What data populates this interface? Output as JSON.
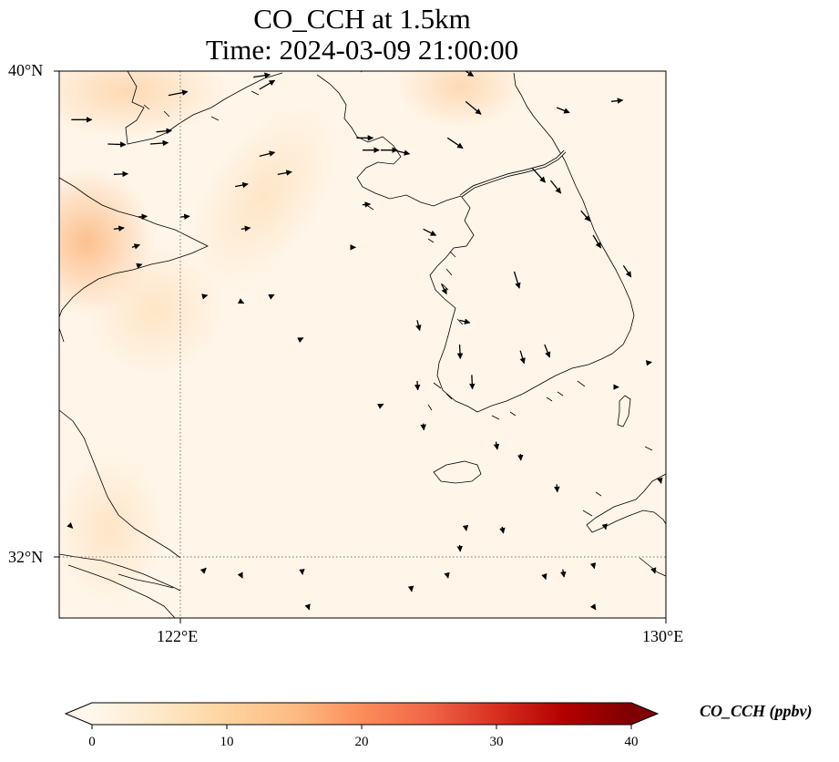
{
  "title": {
    "line1": "CO_CCH at 1.5km",
    "line2": "Time: 2024-03-09 21:00:00"
  },
  "axes": {
    "lon_range": [
      120,
      130
    ],
    "lat_range": [
      31,
      40
    ],
    "lat_ticks": [
      {
        "value": 40,
        "label": "40°N"
      },
      {
        "value": 32,
        "label": "32°N"
      }
    ],
    "lon_ticks": [
      {
        "value": 122,
        "label": "122°E"
      },
      {
        "value": 130,
        "label": "130°E"
      }
    ],
    "gridlines": "dotted"
  },
  "colorbar": {
    "label": "CO_CCH (ppbv)",
    "min": 0,
    "max": 40,
    "extend": "both",
    "colormap": "OrRd",
    "colors": [
      "#fff7ec",
      "#fee8c8",
      "#fdd49e",
      "#fdbb84",
      "#fc8d59",
      "#ef6548",
      "#d7301f",
      "#b30000",
      "#7f0000"
    ],
    "ticks": [
      {
        "value": 0,
        "label": "0"
      },
      {
        "value": 10,
        "label": "10"
      },
      {
        "value": 20,
        "label": "20"
      },
      {
        "value": 30,
        "label": "30"
      },
      {
        "value": 40,
        "label": "40"
      }
    ]
  },
  "field_colors": {
    "background": "#fff5e8",
    "light": "#fee8cc",
    "medium": "#fdd6ad",
    "high": "#fcc191"
  },
  "wind_vectors": [
    {
      "lon": 120.2,
      "lat": 39.2,
      "u": 1.6,
      "v": 0.0
    },
    {
      "lon": 120.8,
      "lat": 38.8,
      "u": 1.4,
      "v": -0.05
    },
    {
      "lon": 121.5,
      "lat": 38.8,
      "u": 1.4,
      "v": 0.1
    },
    {
      "lon": 121.8,
      "lat": 39.6,
      "u": 1.5,
      "v": 0.3
    },
    {
      "lon": 121.6,
      "lat": 39.0,
      "u": 1.2,
      "v": 0.1
    },
    {
      "lon": 120.9,
      "lat": 38.3,
      "u": 1.1,
      "v": 0.05
    },
    {
      "lon": 121.3,
      "lat": 37.6,
      "u": 0.7,
      "v": 0.05
    },
    {
      "lon": 120.9,
      "lat": 37.4,
      "u": 0.8,
      "v": 0.1
    },
    {
      "lon": 121.2,
      "lat": 37.1,
      "u": 0.6,
      "v": 0.2
    },
    {
      "lon": 122.0,
      "lat": 37.6,
      "u": 0.7,
      "v": 0.05
    },
    {
      "lon": 123.3,
      "lat": 38.6,
      "u": 1.2,
      "v": 0.3
    },
    {
      "lon": 123.6,
      "lat": 38.3,
      "u": 1.1,
      "v": 0.2
    },
    {
      "lon": 122.9,
      "lat": 38.1,
      "u": 1.0,
      "v": 0.2
    },
    {
      "lon": 123.0,
      "lat": 37.4,
      "u": 0.7,
      "v": 0.1
    },
    {
      "lon": 123.3,
      "lat": 39.7,
      "u": 1.2,
      "v": 0.7
    },
    {
      "lon": 123.2,
      "lat": 39.9,
      "u": 1.3,
      "v": 0.2
    },
    {
      "lon": 126.7,
      "lat": 39.5,
      "u": 1.2,
      "v": -1.0
    },
    {
      "lon": 126.4,
      "lat": 38.9,
      "u": 1.2,
      "v": -0.8
    },
    {
      "lon": 127.8,
      "lat": 38.4,
      "u": 1.0,
      "v": -1.1
    },
    {
      "lon": 128.1,
      "lat": 38.2,
      "u": 0.8,
      "v": -1.0
    },
    {
      "lon": 128.2,
      "lat": 39.4,
      "u": 1.0,
      "v": -0.4
    },
    {
      "lon": 129.1,
      "lat": 39.5,
      "u": 0.9,
      "v": 0.1
    },
    {
      "lon": 126.7,
      "lat": 40.0,
      "u": 0.6,
      "v": -0.4
    },
    {
      "lon": 125.3,
      "lat": 38.7,
      "u": 1.3,
      "v": 0.0
    },
    {
      "lon": 125.0,
      "lat": 38.7,
      "u": 1.3,
      "v": 0.0
    },
    {
      "lon": 125.5,
      "lat": 38.7,
      "u": 1.3,
      "v": -0.3
    },
    {
      "lon": 124.9,
      "lat": 38.9,
      "u": 1.3,
      "v": 0.0
    },
    {
      "lon": 124.8,
      "lat": 40.0,
      "u": 1.2,
      "v": 0.2
    },
    {
      "lon": 125.0,
      "lat": 37.8,
      "u": 0.6,
      "v": 0.05
    },
    {
      "lon": 126.0,
      "lat": 37.4,
      "u": 1.0,
      "v": -0.5
    },
    {
      "lon": 124.8,
      "lat": 37.1,
      "u": 0.4,
      "v": 0.0
    },
    {
      "lon": 128.6,
      "lat": 37.7,
      "u": 0.7,
      "v": -0.8
    },
    {
      "lon": 128.8,
      "lat": 37.3,
      "u": 0.6,
      "v": -1.0
    },
    {
      "lon": 129.3,
      "lat": 36.8,
      "u": 0.6,
      "v": -0.9
    },
    {
      "lon": 127.5,
      "lat": 36.7,
      "u": 0.4,
      "v": -1.3
    },
    {
      "lon": 126.3,
      "lat": 36.5,
      "u": 0.4,
      "v": -0.8
    },
    {
      "lon": 125.9,
      "lat": 35.9,
      "u": 0.2,
      "v": -0.8
    },
    {
      "lon": 126.6,
      "lat": 35.9,
      "u": 0.8,
      "v": -0.2
    },
    {
      "lon": 127.6,
      "lat": 35.4,
      "u": 0.3,
      "v": -1.0
    },
    {
      "lon": 128.0,
      "lat": 35.5,
      "u": 0.4,
      "v": -1.0
    },
    {
      "lon": 126.6,
      "lat": 35.5,
      "u": 0.05,
      "v": -1.1
    },
    {
      "lon": 126.8,
      "lat": 35.0,
      "u": 0.05,
      "v": -1.1
    },
    {
      "lon": 125.9,
      "lat": 34.9,
      "u": 0.05,
      "v": -0.7
    },
    {
      "lon": 126.0,
      "lat": 34.2,
      "u": 0.05,
      "v": -0.5
    },
    {
      "lon": 127.2,
      "lat": 33.9,
      "u": 0.1,
      "v": -0.6
    },
    {
      "lon": 127.6,
      "lat": 33.7,
      "u": 0.05,
      "v": -0.5
    },
    {
      "lon": 128.2,
      "lat": 33.2,
      "u": 0.05,
      "v": -0.6
    },
    {
      "lon": 127.3,
      "lat": 32.5,
      "u": 0.1,
      "v": -0.5
    },
    {
      "lon": 126.6,
      "lat": 32.2,
      "u": 0.05,
      "v": -0.5
    },
    {
      "lon": 128.3,
      "lat": 31.8,
      "u": 0.1,
      "v": -0.6
    },
    {
      "lon": 128.8,
      "lat": 31.9,
      "u": 0.1,
      "v": -0.4
    },
    {
      "lon": 129.8,
      "lat": 31.8,
      "u": 0.1,
      "v": -0.3
    },
    {
      "lon": 129.9,
      "lat": 33.3,
      "u": 0.1,
      "v": -0.4
    },
    {
      "lon": 129.0,
      "lat": 32.5,
      "u": 0.05,
      "v": -0.2
    },
    {
      "lon": 129.7,
      "lat": 35.2,
      "u": 0.3,
      "v": 0.05
    },
    {
      "lon": 129.2,
      "lat": 34.8,
      "u": 0.1,
      "v": 0.0
    },
    {
      "lon": 128.8,
      "lat": 31.2,
      "u": 0.2,
      "v": -0.3
    },
    {
      "lon": 128.0,
      "lat": 31.7,
      "u": 0.1,
      "v": -0.3
    },
    {
      "lon": 125.8,
      "lat": 31.5,
      "u": 0.05,
      "v": -0.3
    },
    {
      "lon": 124.1,
      "lat": 31.2,
      "u": 0.1,
      "v": -0.3
    },
    {
      "lon": 123.0,
      "lat": 31.7,
      "u": 0.1,
      "v": -0.2
    },
    {
      "lon": 122.4,
      "lat": 31.8,
      "u": 0.1,
      "v": 0.1
    },
    {
      "lon": 124.0,
      "lat": 31.8,
      "u": 0.05,
      "v": -0.4
    },
    {
      "lon": 126.4,
      "lat": 31.7,
      "u": 0.05,
      "v": -0.2
    },
    {
      "lon": 126.7,
      "lat": 32.5,
      "u": 0.05,
      "v": -0.3
    },
    {
      "lon": 125.3,
      "lat": 34.5,
      "u": 0.2,
      "v": 0.1
    },
    {
      "lon": 124.0,
      "lat": 35.6,
      "u": 0.1,
      "v": 0.05
    },
    {
      "lon": 123.0,
      "lat": 36.2,
      "u": 0.2,
      "v": -0.1
    },
    {
      "lon": 123.5,
      "lat": 36.3,
      "u": 0.2,
      "v": 0.1
    },
    {
      "lon": 122.4,
      "lat": 36.3,
      "u": 0.2,
      "v": 0.05
    },
    {
      "lon": 121.3,
      "lat": 36.8,
      "u": 0.3,
      "v": 0.1
    },
    {
      "lon": 120.2,
      "lat": 32.5,
      "u": 0.1,
      "v": -0.1
    }
  ]
}
